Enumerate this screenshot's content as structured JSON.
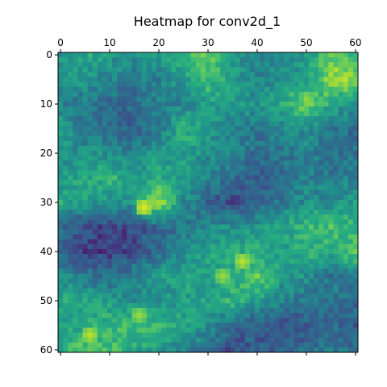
{
  "chart_data": {
    "type": "heatmap",
    "title": "Heatmap for conv2d_1",
    "xlabel": "",
    "ylabel": "",
    "x_axis_position": "top",
    "y_axis_inverted": true,
    "grid": false,
    "xlim": [
      -0.5,
      60.5
    ],
    "ylim": [
      60.5,
      -0.5
    ],
    "x_ticks": [
      0,
      10,
      20,
      30,
      40,
      50,
      60
    ],
    "y_ticks": [
      0,
      10,
      20,
      30,
      40,
      50,
      60
    ],
    "x_tick_labels": [
      "0",
      "10",
      "20",
      "30",
      "40",
      "50",
      "60"
    ],
    "y_tick_labels": [
      "0",
      "10",
      "20",
      "30",
      "40",
      "50",
      "60"
    ],
    "colormap": "viridis",
    "value_range": [
      0,
      1
    ],
    "grid_size": [
      61,
      61
    ],
    "coarse_rows": [
      0,
      5,
      10,
      15,
      20,
      25,
      30,
      35,
      40,
      45,
      50,
      55,
      60
    ],
    "coarse_cols": [
      0,
      5,
      10,
      15,
      20,
      25,
      30,
      35,
      40,
      45,
      50,
      55,
      60
    ],
    "coarse_values": [
      [
        0.55,
        0.6,
        0.55,
        0.5,
        0.55,
        0.65,
        0.75,
        0.55,
        0.45,
        0.5,
        0.55,
        0.75,
        0.7
      ],
      [
        0.5,
        0.55,
        0.45,
        0.4,
        0.45,
        0.55,
        0.7,
        0.55,
        0.45,
        0.5,
        0.55,
        0.85,
        0.85
      ],
      [
        0.45,
        0.4,
        0.35,
        0.35,
        0.45,
        0.45,
        0.55,
        0.55,
        0.5,
        0.6,
        0.8,
        0.6,
        0.5
      ],
      [
        0.55,
        0.4,
        0.35,
        0.3,
        0.4,
        0.65,
        0.55,
        0.45,
        0.4,
        0.45,
        0.5,
        0.4,
        0.35
      ],
      [
        0.5,
        0.5,
        0.5,
        0.45,
        0.55,
        0.55,
        0.5,
        0.45,
        0.35,
        0.4,
        0.45,
        0.35,
        0.4
      ],
      [
        0.55,
        0.6,
        0.65,
        0.55,
        0.6,
        0.55,
        0.45,
        0.35,
        0.3,
        0.35,
        0.45,
        0.4,
        0.45
      ],
      [
        0.6,
        0.55,
        0.5,
        0.55,
        0.85,
        0.5,
        0.3,
        0.25,
        0.3,
        0.4,
        0.5,
        0.5,
        0.55
      ],
      [
        0.35,
        0.25,
        0.2,
        0.25,
        0.35,
        0.4,
        0.5,
        0.5,
        0.55,
        0.6,
        0.65,
        0.7,
        0.65
      ],
      [
        0.3,
        0.2,
        0.2,
        0.25,
        0.35,
        0.45,
        0.6,
        0.6,
        0.6,
        0.55,
        0.65,
        0.6,
        0.75
      ],
      [
        0.5,
        0.4,
        0.35,
        0.45,
        0.55,
        0.6,
        0.55,
        0.6,
        0.8,
        0.55,
        0.5,
        0.4,
        0.45
      ],
      [
        0.6,
        0.6,
        0.55,
        0.5,
        0.5,
        0.55,
        0.6,
        0.65,
        0.55,
        0.45,
        0.4,
        0.4,
        0.35
      ],
      [
        0.55,
        0.6,
        0.65,
        0.7,
        0.65,
        0.6,
        0.5,
        0.35,
        0.3,
        0.25,
        0.3,
        0.35,
        0.3
      ],
      [
        0.6,
        0.75,
        0.7,
        0.6,
        0.55,
        0.45,
        0.35,
        0.25,
        0.3,
        0.3,
        0.35,
        0.4,
        0.35
      ]
    ],
    "highlights": [
      {
        "row": 31,
        "col": 17,
        "value": 0.95
      },
      {
        "row": 42,
        "col": 37,
        "value": 0.9
      },
      {
        "row": 45,
        "col": 33,
        "value": 0.85
      },
      {
        "row": 57,
        "col": 6,
        "value": 0.9
      },
      {
        "row": 53,
        "col": 16,
        "value": 0.85
      }
    ]
  }
}
